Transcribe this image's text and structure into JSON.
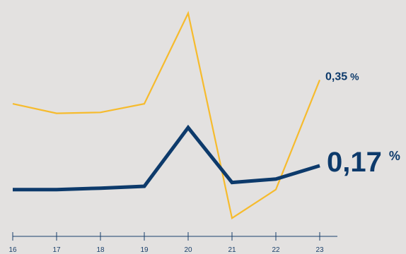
{
  "chart_data": {
    "type": "line",
    "title": "",
    "xlabel": "",
    "ylabel": "",
    "x": [
      "16",
      "17",
      "18",
      "19",
      "20",
      "21",
      "22",
      "23"
    ],
    "ylim": [
      0.05,
      0.5
    ],
    "grid": false,
    "legend": "none",
    "series": [
      {
        "color": "#f6bb2d",
        "values": [
          0.3,
          0.28,
          0.282,
          0.3,
          0.49,
          0.06,
          0.12,
          0.35
        ]
      },
      {
        "color": "#0d3a6b",
        "values": [
          0.12,
          0.12,
          0.123,
          0.127,
          0.25,
          0.135,
          0.142,
          0.17
        ]
      }
    ],
    "end_labels": [
      {
        "series": 0,
        "value": "0,35",
        "unit": "%"
      },
      {
        "series": 1,
        "value": "0,17",
        "unit": "%"
      }
    ]
  }
}
